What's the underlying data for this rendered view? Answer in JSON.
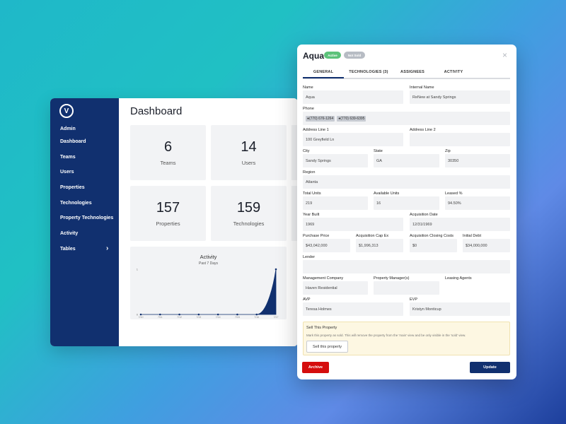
{
  "dashboard": {
    "title": "Dashboard",
    "logo_letter": "V",
    "sidebar": {
      "items": [
        "Admin",
        "Dashboard",
        "Teams",
        "Users",
        "Properties",
        "Technologies",
        "Property Technologies",
        "Activity",
        "Tables"
      ],
      "chevron": "›"
    },
    "stats": [
      {
        "value": "6",
        "label": "Teams"
      },
      {
        "value": "14",
        "label": "Users"
      },
      {
        "value": "157",
        "label": "Properties"
      },
      {
        "value": "159",
        "label": "Technologies"
      }
    ],
    "activity": {
      "title": "Activity",
      "subtitle": "Past 7 Days"
    }
  },
  "chart_data": {
    "type": "area",
    "title": "Activity",
    "subtitle": "Past 7 Days",
    "x": [
      "7/10",
      "7/11",
      "7/12",
      "7/13",
      "7/14",
      "7/15",
      "7/16",
      "7/17"
    ],
    "values": [
      0,
      0,
      0,
      0,
      0,
      0,
      0,
      1
    ],
    "y_ticks": [
      "0",
      "1"
    ],
    "ylim": [
      0,
      1
    ],
    "color": "#11306f"
  },
  "modal": {
    "title": "Aqua",
    "badges": [
      {
        "label": "Active",
        "color": "#5cc27a"
      },
      {
        "label": "Not Sold",
        "color": "#b7bcc4"
      }
    ],
    "close_icon": "×",
    "tabs": [
      "GENERAL",
      "TECHNOLOGIES (3)",
      "ASSIGNEES",
      "ACTIVITY"
    ],
    "fields": {
      "name": {
        "label": "Name",
        "value": "Aqua"
      },
      "internal_name": {
        "label": "Internal Name",
        "value": "ReNew at Sandy Springs"
      },
      "phone": {
        "label": "Phone",
        "values": [
          "(770) 676-1264",
          "(770) 639-6395"
        ]
      },
      "address1": {
        "label": "Address Line 1",
        "value": "100 Greyfield Ln"
      },
      "address2": {
        "label": "Address Line 2",
        "value": ""
      },
      "city": {
        "label": "City",
        "value": "Sandy Springs"
      },
      "state": {
        "label": "State",
        "value": "GA"
      },
      "zip": {
        "label": "Zip",
        "value": "30350"
      },
      "region": {
        "label": "Region",
        "value": "Atlanta"
      },
      "total_units": {
        "label": "Total Units",
        "value": "219"
      },
      "available_units": {
        "label": "Available Units",
        "value": "16"
      },
      "leased": {
        "label": "Leased %",
        "value": "94.50%"
      },
      "year_built": {
        "label": "Year Built",
        "value": "1969"
      },
      "acquisition_date": {
        "label": "Acquisition Date",
        "value": "12/31/1969"
      },
      "purchase_price": {
        "label": "Purchase Price",
        "value": "$43,042,000"
      },
      "acq_cap_ex": {
        "label": "Acquisition Cap Ex",
        "value": "$1,996,313"
      },
      "acq_closing_costs": {
        "label": "Acquisition Closing Costs",
        "value": "$0"
      },
      "initial_debt": {
        "label": "Initial Debt",
        "value": "$34,000,000"
      },
      "lender": {
        "label": "Lender",
        "value": ""
      },
      "mgmt_company": {
        "label": "Management Company",
        "value": "Haven Residential"
      },
      "property_managers": {
        "label": "Property Manager(s)",
        "value": ""
      },
      "leasing_agents": {
        "label": "Leasing Agents",
        "value": ""
      },
      "avp": {
        "label": "AVP",
        "value": "Teresa Holmes"
      },
      "evp": {
        "label": "EVP",
        "value": "Kristyn Monticup"
      }
    },
    "sell": {
      "title": "Sell This Property",
      "description": "Mark this property as sold. This will remove the property from the 'main' view and be only visible in the 'sold' view.",
      "button": "Sell this property"
    },
    "archive_button": "Archive",
    "update_button": "Update"
  }
}
